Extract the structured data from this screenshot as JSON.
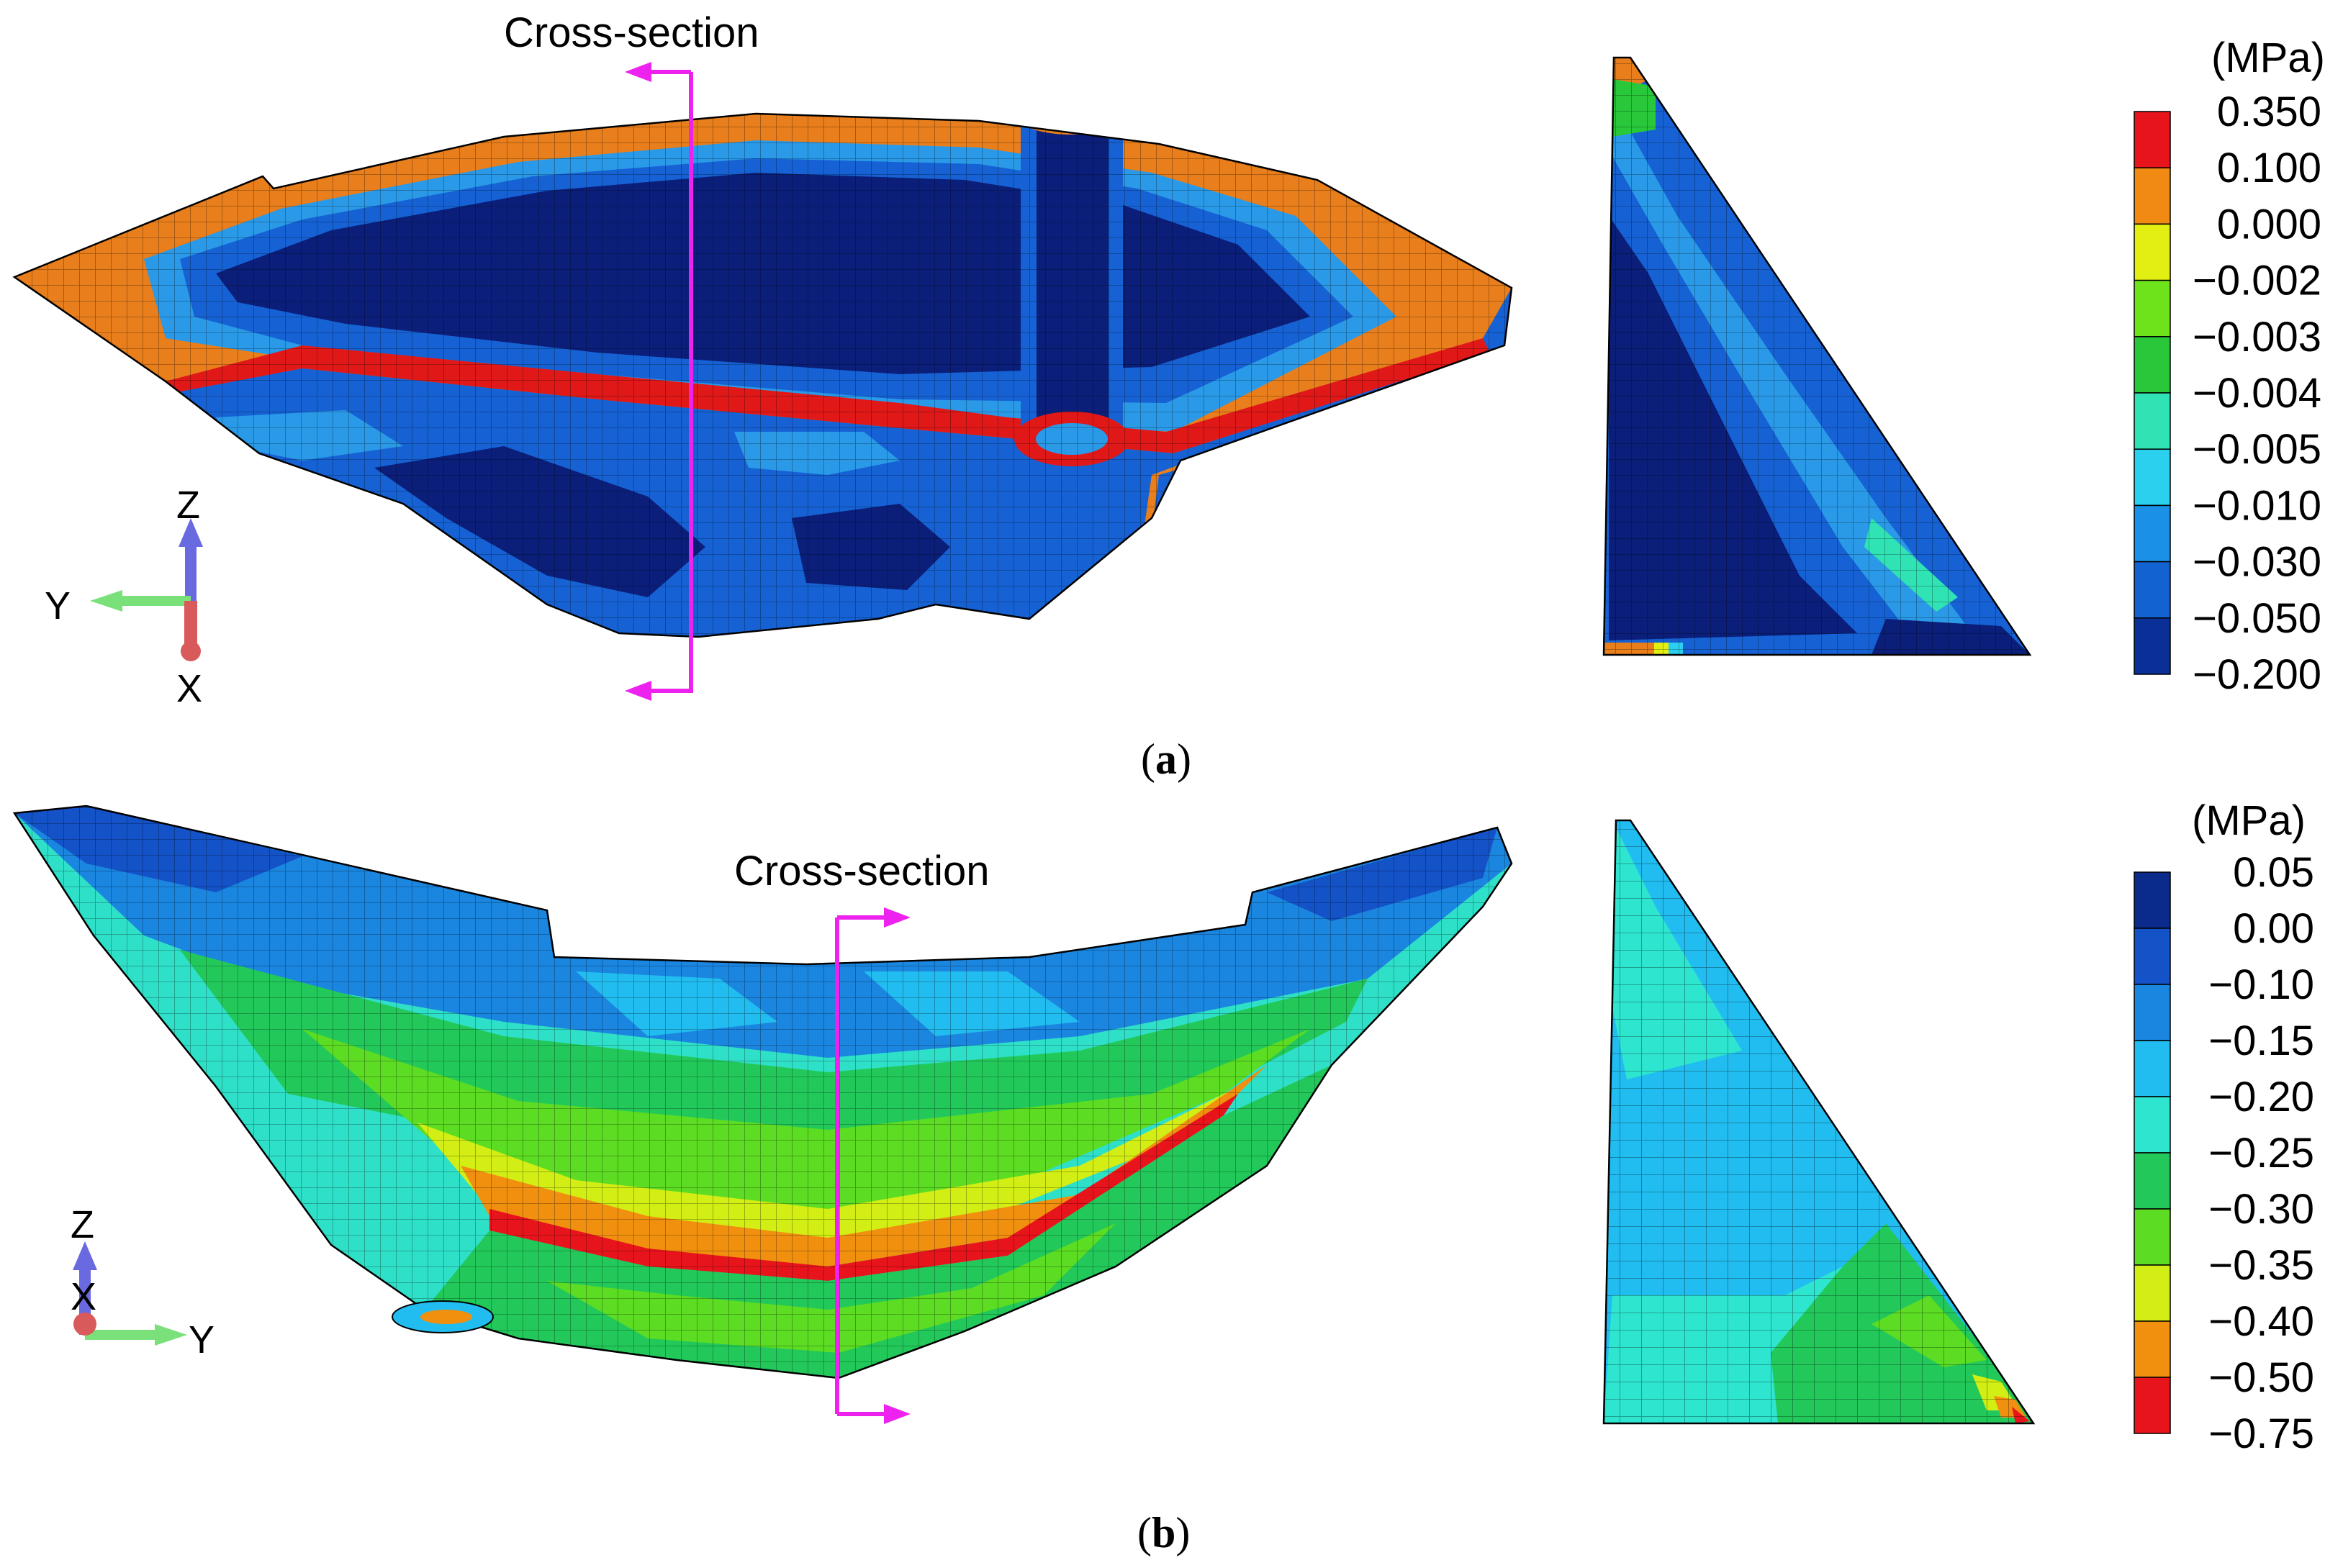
{
  "panel_a": {
    "caption_open": "(",
    "caption_letter": "a",
    "caption_close": ")",
    "section_label": "Cross-section",
    "unit": "(MPa)",
    "legend_values": [
      "0.350",
      "0.100",
      "0.000",
      "−0.002",
      "−0.003",
      "−0.004",
      "−0.005",
      "−0.010",
      "−0.030",
      "−0.050",
      "−0.200"
    ],
    "legend_colors": [
      "#e8141c",
      "#f08a12",
      "#e3ef12",
      "#6ee21a",
      "#28c83a",
      "#2fe3b4",
      "#2ad0ee",
      "#1a90e6",
      "#1262d2",
      "#0a2f96"
    ],
    "axes": {
      "z": "Z",
      "y": "Y",
      "x": "X"
    }
  },
  "panel_b": {
    "caption_open": "(",
    "caption_letter": "b",
    "caption_close": ")",
    "section_label": "Cross-section",
    "unit": "(MPa)",
    "legend_values": [
      "0.05",
      "0.00",
      "−0.10",
      "−0.15",
      "−0.20",
      "−0.25",
      "−0.30",
      "−0.35",
      "−0.40",
      "−0.50",
      "−0.75"
    ],
    "legend_colors": [
      "#0a2a8c",
      "#1452c8",
      "#1a86e0",
      "#22bdf0",
      "#2ee6d0",
      "#22c95a",
      "#5cdc22",
      "#d2ee14",
      "#f0900e",
      "#e8141c"
    ],
    "axes": {
      "z": "Z",
      "x": "X",
      "y": "Y"
    }
  },
  "colors": {
    "section_line": "#ee22ee",
    "deep_blue": "#0b1f7a",
    "mid_blue": "#1662d4",
    "light_blue": "#2a9ae8",
    "orange": "#e87e1c",
    "red": "#e01818",
    "green": "#2cc84a",
    "cyan": "#2fe0c8"
  }
}
